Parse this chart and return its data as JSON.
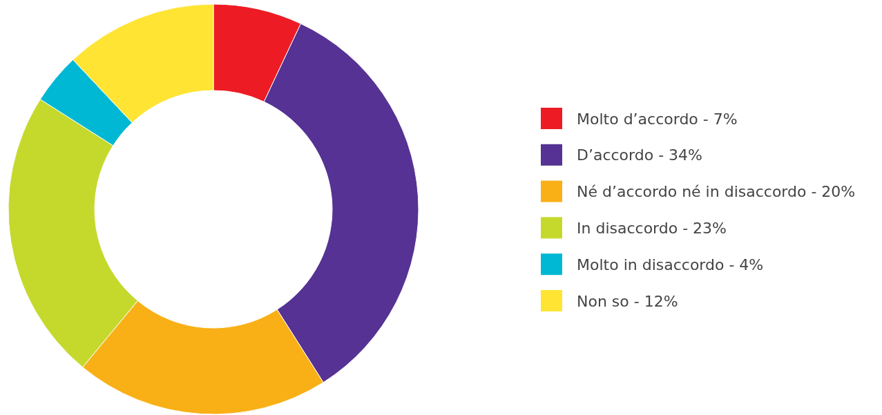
{
  "chart_data": {
    "type": "donut",
    "categories": [
      "Molto d’accordo - 7%",
      "D’accordo - 34%",
      "Né d’accordo né in disaccordo - 20%",
      "In disaccordo - 23%",
      "Molto in disaccordo - 4%",
      "Non so - 12%"
    ],
    "values": [
      7,
      34,
      20,
      23,
      4,
      12
    ],
    "colors": [
      "#ed1c24",
      "#553293",
      "#f9b016",
      "#c5d92d",
      "#00b8d4",
      "#ffe433"
    ],
    "legend": "right"
  }
}
